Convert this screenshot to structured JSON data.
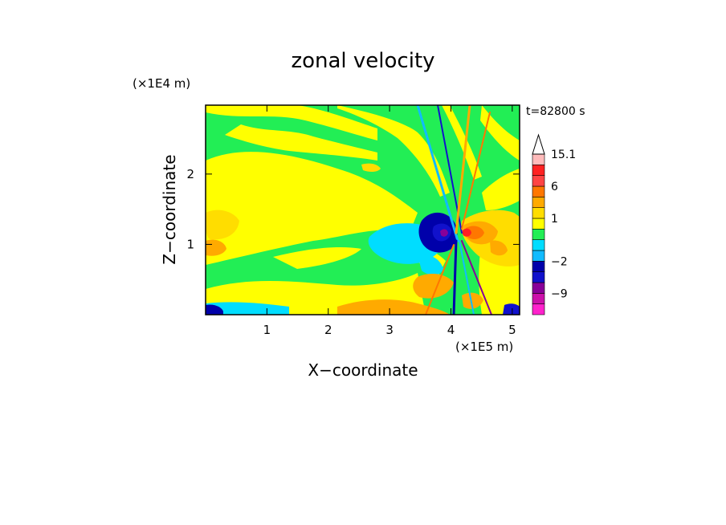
{
  "chart_data": {
    "type": "heatmap",
    "title": "zonal velocity",
    "xlabel": "X−coordinate",
    "ylabel": "Z−coordinate",
    "x_unit": "(×1E5 m)",
    "y_unit": "(×1E4 m)",
    "time_label": "t=82800 s",
    "xlim": [
      0,
      5.12
    ],
    "ylim": [
      0,
      2.98
    ],
    "x_ticks": [
      1,
      2,
      3,
      4,
      5
    ],
    "y_ticks": [
      1,
      2
    ],
    "x_tick_labels": [
      "1",
      "2",
      "3",
      "4",
      "5"
    ],
    "y_tick_labels": [
      "1",
      "2"
    ],
    "colorbar": {
      "levels": [
        -15.0,
        -12.0,
        -9.0,
        -6.0,
        -4.0,
        -2.0,
        -1.0,
        -0.5,
        0.5,
        1.0,
        2.0,
        4.0,
        6.0,
        9.0,
        12.0,
        15.1
      ],
      "colors": [
        "#ff22cc",
        "#cc11aa",
        "#880099",
        "#1111cc",
        "#0000aa",
        "#11bbff",
        "#00ddff",
        "#22ee55",
        "#ffff00",
        "#ffdd00",
        "#ffaa00",
        "#ff7700",
        "#ff4444",
        "#ff2222",
        "#ffbbbb"
      ],
      "tick_labels": [
        {
          "value": 15.1,
          "label": "15.1"
        },
        {
          "value": 6,
          "label": "6"
        },
        {
          "value": 1,
          "label": "1"
        },
        {
          "value": -2,
          "label": "−2"
        },
        {
          "value": -9,
          "label": "−9"
        }
      ],
      "extend": "max"
    },
    "field_summary": "Zonal velocity field at t=82800 s. Background of weak flow (green ≈0 and yellow ≈1 m/s bands) in layered, slanted streaks; a strong localized disturbance near x≈4.0–4.2×1E5 m and z≈1.1×1E4 m with negative (blue, down to about −12) values west and positive (orange/red, up to about 9) values east, radiating rays toward upper right and lower left."
  },
  "colors": {
    "background": "#ffffff",
    "frame": "#000000"
  }
}
